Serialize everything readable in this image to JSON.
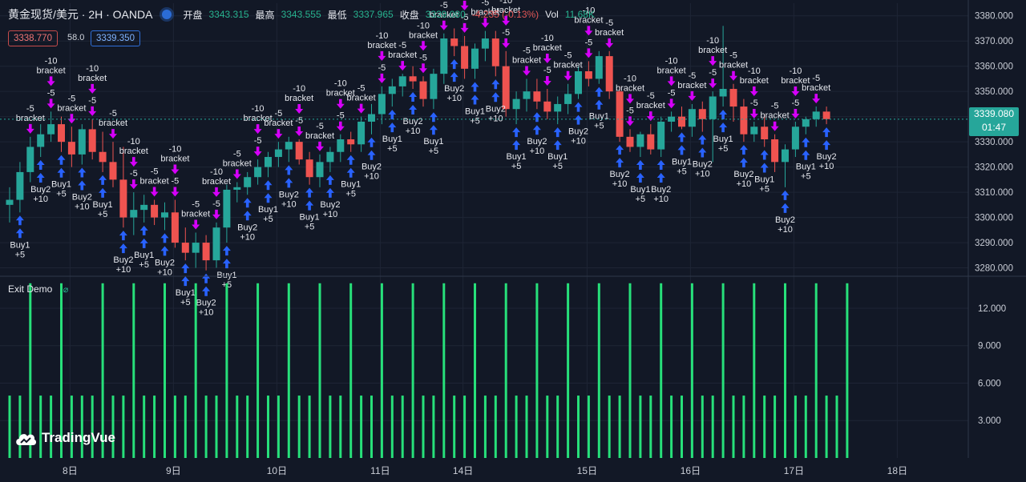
{
  "header": {
    "title": "黄金现货/美元 · 2H · OANDA",
    "open_label": "开盘",
    "open_value": "3343.315",
    "high_label": "最高",
    "high_value": "3343.555",
    "low_label": "最低",
    "low_value": "3337.965",
    "close_label": "收盘",
    "close_value": "3339.080",
    "change_value": "-4.235 (-0.13%)",
    "vol_label": "Vol",
    "vol_value": "11.68K"
  },
  "quote": {
    "bid": "3338.770",
    "spread": "58.0",
    "ask": "3339.350"
  },
  "last_price": {
    "value": "3339.080",
    "countdown": "01:47"
  },
  "indicator": {
    "name": "Exit Demo",
    "visibility_icon": "eye-icon"
  },
  "brand": {
    "name": "TradingVue"
  },
  "colors": {
    "up": "#26a69a",
    "down": "#ef5350",
    "buy_arrow": "#2962ff",
    "exit_arrow": "#d500f9",
    "volume": "#27e07a"
  },
  "signal_labels": {
    "buy1": "Buy1",
    "buy1_value": "+5",
    "buy2": "Buy2",
    "buy2_value": "+10",
    "exit_small": "-5",
    "exit_large": "-10",
    "exit_name": "bracket"
  },
  "chart_data": [
    {
      "type": "candlestick",
      "y_range": [
        3277,
        3385
      ],
      "y_ticks": [
        "3280.000",
        "3290.000",
        "3300.000",
        "3310.000",
        "3320.000",
        "3330.000",
        "3340.000",
        "3350.000",
        "3360.000",
        "3370.000",
        "3380.000"
      ],
      "x_ticks": [
        "8日",
        "9日",
        "10日",
        "11日",
        "14日",
        "15日",
        "16日",
        "17日",
        "18日"
      ],
      "ohlc": [
        [
          3305,
          3312,
          3298,
          3307
        ],
        [
          3307,
          3322,
          3302,
          3318
        ],
        [
          3318,
          3332,
          3314,
          3328
        ],
        [
          3328,
          3337,
          3324,
          3333
        ],
        [
          3333,
          3342,
          3330,
          3337
        ],
        [
          3337,
          3340,
          3326,
          3330
        ],
        [
          3330,
          3336,
          3320,
          3325
        ],
        [
          3325,
          3337,
          3321,
          3335
        ],
        [
          3335,
          3339,
          3323,
          3326
        ],
        [
          3326,
          3334,
          3318,
          3322
        ],
        [
          3322,
          3330,
          3312,
          3315
        ],
        [
          3315,
          3328,
          3296,
          3300
        ],
        [
          3300,
          3310,
          3293,
          3303
        ],
        [
          3303,
          3309,
          3298,
          3305
        ],
        [
          3305,
          3307,
          3297,
          3300
        ],
        [
          3300,
          3306,
          3295,
          3302
        ],
        [
          3302,
          3307,
          3288,
          3290
        ],
        [
          3290,
          3296,
          3283,
          3286
        ],
        [
          3286,
          3294,
          3280,
          3290
        ],
        [
          3290,
          3293,
          3279,
          3283
        ],
        [
          3283,
          3298,
          3280,
          3296
        ],
        [
          3296,
          3313,
          3290,
          3311
        ],
        [
          3311,
          3314,
          3306,
          3312
        ],
        [
          3312,
          3318,
          3309,
          3316
        ],
        [
          3316,
          3323,
          3313,
          3320
        ],
        [
          3320,
          3326,
          3316,
          3324
        ],
        [
          3324,
          3330,
          3320,
          3327
        ],
        [
          3327,
          3332,
          3322,
          3330
        ],
        [
          3330,
          3331,
          3321,
          3323
        ],
        [
          3323,
          3326,
          3313,
          3316
        ],
        [
          3316,
          3325,
          3312,
          3322
        ],
        [
          3322,
          3328,
          3318,
          3326
        ],
        [
          3326,
          3333,
          3322,
          3331
        ],
        [
          3331,
          3334,
          3326,
          3329
        ],
        [
          3329,
          3340,
          3326,
          3338
        ],
        [
          3338,
          3345,
          3333,
          3341
        ],
        [
          3341,
          3352,
          3337,
          3349
        ],
        [
          3349,
          3355,
          3344,
          3352
        ],
        [
          3352,
          3357,
          3348,
          3356
        ],
        [
          3356,
          3360,
          3351,
          3354
        ],
        [
          3354,
          3356,
          3344,
          3347
        ],
        [
          3347,
          3359,
          3343,
          3357
        ],
        [
          3357,
          3373,
          3353,
          3371
        ],
        [
          3371,
          3375,
          3364,
          3368
        ],
        [
          3368,
          3372,
          3355,
          3359
        ],
        [
          3359,
          3369,
          3355,
          3367
        ],
        [
          3367,
          3374,
          3362,
          3371
        ],
        [
          3371,
          3374,
          3356,
          3360
        ],
        [
          3360,
          3366,
          3340,
          3343
        ],
        [
          3343,
          3350,
          3337,
          3347
        ],
        [
          3347,
          3355,
          3342,
          3350
        ],
        [
          3350,
          3355,
          3343,
          3346
        ],
        [
          3346,
          3351,
          3339,
          3342
        ],
        [
          3342,
          3348,
          3337,
          3345
        ],
        [
          3345,
          3353,
          3341,
          3349
        ],
        [
          3349,
          3360,
          3347,
          3358
        ],
        [
          3358,
          3362,
          3352,
          3355
        ],
        [
          3355,
          3366,
          3353,
          3364
        ],
        [
          3364,
          3366,
          3347,
          3350
        ],
        [
          3350,
          3352,
          3330,
          3332
        ],
        [
          3332,
          3335,
          3326,
          3328
        ],
        [
          3328,
          3334,
          3324,
          3333
        ],
        [
          3333,
          3337,
          3325,
          3327
        ],
        [
          3327,
          3340,
          3324,
          3338
        ],
        [
          3338,
          3342,
          3334,
          3340
        ],
        [
          3340,
          3344,
          3335,
          3336
        ],
        [
          3336,
          3345,
          3332,
          3343
        ],
        [
          3343,
          3346,
          3334,
          3339
        ],
        [
          3339,
          3350,
          3322,
          3348
        ],
        [
          3348,
          3376,
          3344,
          3351
        ],
        [
          3351,
          3353,
          3338,
          3344
        ],
        [
          3344,
          3347,
          3330,
          3333
        ],
        [
          3333,
          3338,
          3330,
          3336
        ],
        [
          3336,
          3341,
          3328,
          3331
        ],
        [
          3331,
          3333,
          3318,
          3322
        ],
        [
          3322,
          3329,
          3312,
          3327
        ],
        [
          3327,
          3338,
          3324,
          3336
        ],
        [
          3336,
          3340,
          3333,
          3339
        ],
        [
          3339,
          3344,
          3336,
          3342
        ],
        [
          3342,
          3344,
          3337,
          3339
        ]
      ]
    },
    {
      "type": "bar",
      "name": "Exit Demo",
      "y_range": [
        0,
        14.5
      ],
      "y_ticks": [
        "3.000",
        "6.000",
        "9.000",
        "12.000"
      ],
      "x_ticks": [
        "8日",
        "9日",
        "10日",
        "11日",
        "14日",
        "15日",
        "16日",
        "17日",
        "18日"
      ],
      "values": [
        5,
        5,
        14,
        5,
        5,
        14,
        5,
        5,
        5,
        14,
        5,
        5,
        14,
        5,
        5,
        14,
        5,
        5,
        14,
        5,
        5,
        14,
        5,
        5,
        14,
        5,
        5,
        14,
        5,
        5,
        14,
        5,
        5,
        14,
        5,
        5,
        14,
        5,
        5,
        14,
        5,
        5,
        14,
        5,
        5,
        14,
        5,
        5,
        14,
        5,
        5,
        14,
        5,
        5,
        14,
        5,
        5,
        14,
        5,
        5,
        14,
        5,
        5,
        14,
        5,
        5,
        14,
        5,
        5,
        14,
        5,
        5,
        14,
        5,
        5,
        14,
        5,
        5,
        14,
        5,
        5,
        14
      ]
    }
  ]
}
